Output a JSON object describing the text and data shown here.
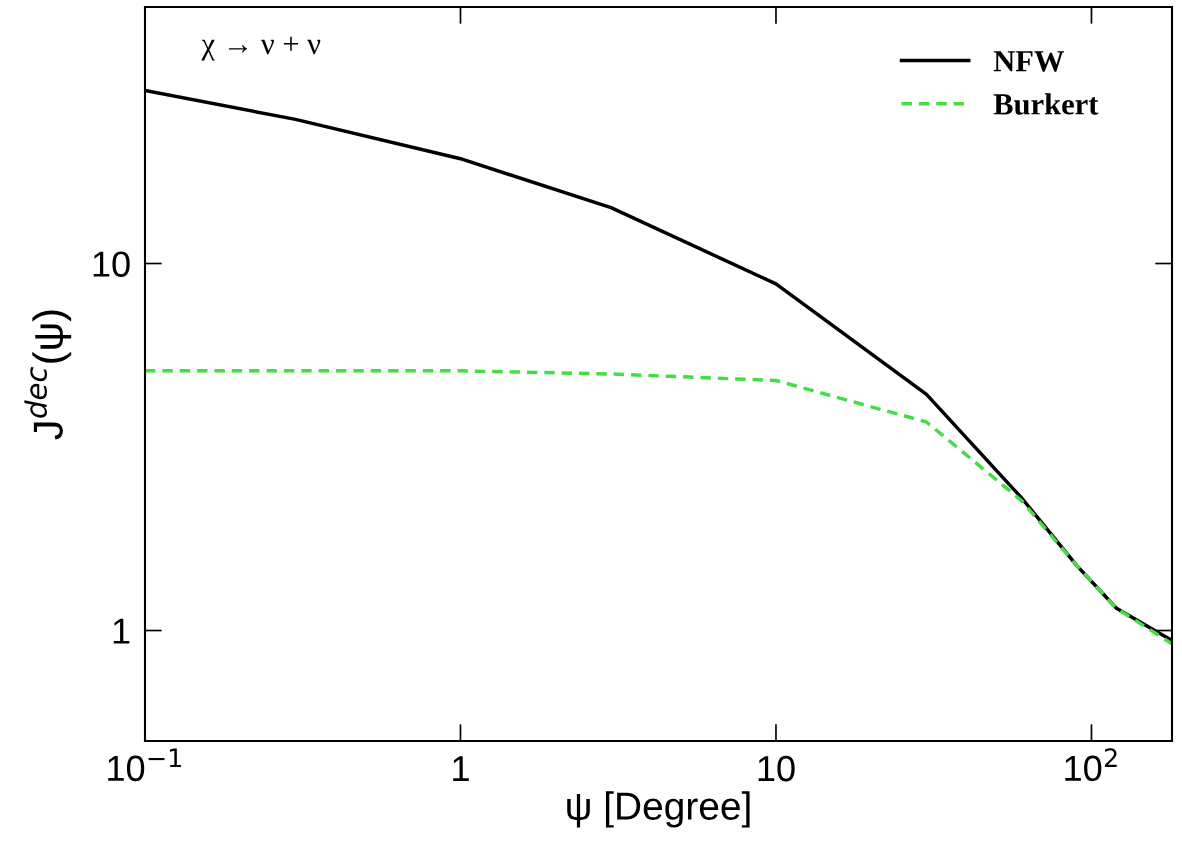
{
  "chart_data": {
    "type": "line",
    "xlabel": "ψ [Degree]",
    "ylabel": "J$^{dec}$(ψ)",
    "annotations": [
      "χ → ν + ν"
    ],
    "x": [
      0.1,
      0.3,
      1,
      3,
      10,
      30,
      60,
      90,
      120,
      180
    ],
    "series": [
      {
        "name": "NFW",
        "color": "#000000",
        "line_style": "solid",
        "values": [
          29.6,
          24.7,
          19.3,
          14.2,
          8.8,
          4.4,
          2.3,
          1.5,
          1.15,
          0.94
        ]
      },
      {
        "name": "Burkert",
        "color": "#44dd44",
        "line_style": "dashed",
        "values": [
          5.1,
          5.1,
          5.1,
          5.0,
          4.8,
          3.7,
          2.26,
          1.5,
          1.15,
          0.92
        ]
      }
    ],
    "log": "xy",
    "xlim": [
      0.1,
      180
    ],
    "ylim": [
      0.5,
      50
    ],
    "xticks": [
      {
        "value": 0.1,
        "label": "10$^{−1}$"
      },
      1,
      10,
      {
        "value": 100,
        "label": "10$^{2}$"
      }
    ],
    "yticks": [
      1,
      10
    ],
    "grid": false,
    "legend": "top right",
    "marker": "none"
  }
}
